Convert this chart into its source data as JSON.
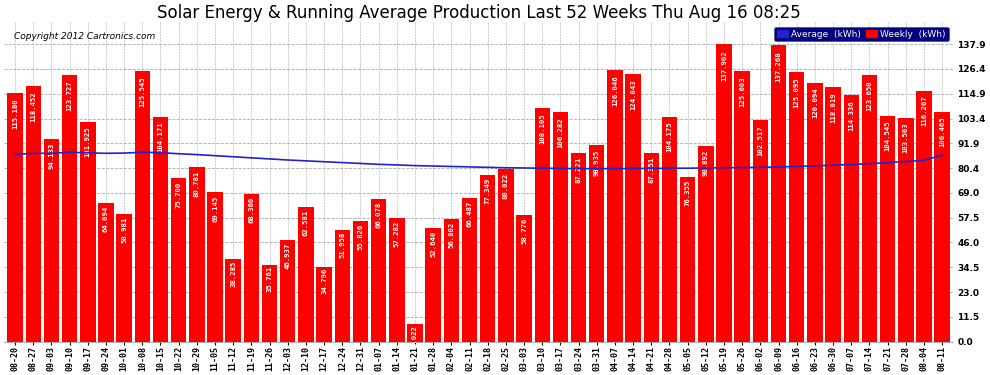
{
  "title": "Solar Energy & Running Average Production Last 52 Weeks Thu Aug 16 08:25",
  "copyright": "Copyright 2012 Cartronics.com",
  "legend_avg": "Average  (kWh)",
  "legend_weekly": "Weekly  (kWh)",
  "xlabels": [
    "08-20",
    "08-27",
    "09-03",
    "09-10",
    "09-17",
    "09-24",
    "10-01",
    "10-08",
    "10-15",
    "10-22",
    "10-29",
    "11-05",
    "11-12",
    "11-19",
    "11-26",
    "12-03",
    "12-10",
    "12-17",
    "12-24",
    "12-31",
    "01-07",
    "01-14",
    "01-21",
    "01-28",
    "02-04",
    "02-11",
    "02-18",
    "02-25",
    "03-03",
    "03-10",
    "03-17",
    "03-24",
    "03-31",
    "04-07",
    "04-14",
    "04-21",
    "04-28",
    "05-05",
    "05-12",
    "05-19",
    "05-26",
    "06-02",
    "06-09",
    "06-16",
    "06-23",
    "06-30",
    "07-07",
    "07-14",
    "07-21",
    "07-28",
    "08-04",
    "08-11"
  ],
  "weekly_values": [
    115.18,
    118.452,
    94.133,
    123.727,
    101.925,
    64.094,
    58.981,
    125.545,
    104.171,
    75.7,
    80.781,
    69.145,
    38.285,
    68.36,
    35.761,
    46.937,
    62.581,
    34.796,
    51.958,
    55.826,
    66.078,
    57.282,
    8.022,
    52.64,
    56.802,
    66.487,
    77.349,
    80.022,
    58.776,
    108.105,
    106.282,
    87.221,
    90.935,
    126.046,
    124.043,
    87.351,
    104.175,
    76.355,
    90.892,
    137.902,
    125.603,
    102.517,
    137.268,
    125.095,
    120.094,
    118.019,
    114.336,
    123.65,
    104.545,
    103.503,
    116.267,
    106.465
  ],
  "avg_values": [
    86.8,
    87.3,
    87.3,
    87.8,
    87.5,
    87.3,
    87.4,
    87.8,
    87.6,
    87.1,
    86.7,
    86.2,
    85.7,
    85.2,
    84.7,
    84.2,
    83.8,
    83.4,
    83.0,
    82.6,
    82.2,
    81.9,
    81.6,
    81.4,
    81.2,
    81.0,
    80.8,
    80.6,
    80.5,
    80.4,
    80.3,
    80.2,
    80.2,
    80.2,
    80.3,
    80.3,
    80.4,
    80.4,
    80.5,
    80.6,
    80.7,
    80.8,
    81.0,
    81.2,
    81.5,
    81.8,
    82.1,
    82.5,
    83.0,
    83.5,
    84.0,
    86.5
  ],
  "bar_color": "#ff0000",
  "avg_line_color": "#2222cc",
  "background_color": "#ffffff",
  "plot_bg_color": "#ffffff",
  "grid_color": "#aaaaaa",
  "yticks": [
    0.0,
    11.5,
    23.0,
    34.5,
    46.0,
    57.5,
    69.0,
    80.4,
    91.9,
    103.4,
    114.9,
    126.4,
    137.9
  ],
  "ylim": [
    0,
    148
  ],
  "title_fontsize": 12,
  "tick_fontsize": 6.0,
  "bar_text_fontsize": 5.2,
  "dpi": 100,
  "fig_w": 9.9,
  "fig_h": 3.75
}
